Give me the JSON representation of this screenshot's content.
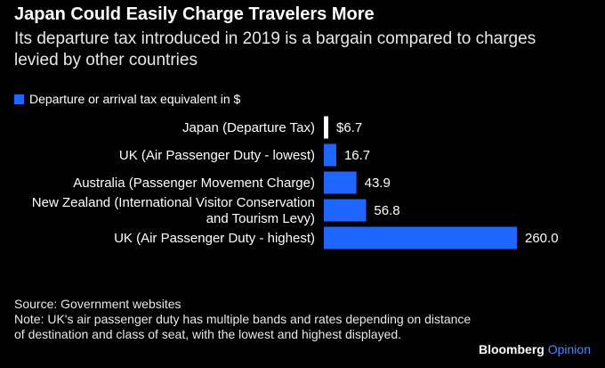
{
  "chart_data": {
    "type": "bar",
    "orientation": "horizontal",
    "title": "Japan Could Easily Charge Travelers More",
    "subtitle": "Its departure tax introduced in 2019 is a bargain compared to charges levied by other countries",
    "legend": "Departure or arrival tax equivalent in $",
    "categories": [
      [
        "Japan (Departure Tax)"
      ],
      [
        "UK (Air Passenger Duty - lowest)"
      ],
      [
        "Australia (Passenger Movement Charge)"
      ],
      [
        "New Zealand (International Visitor Conservation",
        "and Tourism Levy)"
      ],
      [
        "UK (Air Passenger Duty - highest)"
      ]
    ],
    "values": [
      6.7,
      16.7,
      43.9,
      56.8,
      260.0
    ],
    "value_labels": [
      "$6.7",
      "16.7",
      "43.9",
      "56.8",
      "260.0"
    ],
    "highlight_index": 0,
    "xlim": [
      0,
      260
    ]
  },
  "colors": {
    "bar": "#1f66ff",
    "highlight": "#ffffff"
  },
  "source": "Source: Government websites",
  "note": "Note: UK's air passenger duty has multiple bands and rates depending on distance of destination and class of seat, with the lowest and highest displayed.",
  "brand": {
    "name": "Bloomberg",
    "suffix": "Opinion"
  }
}
